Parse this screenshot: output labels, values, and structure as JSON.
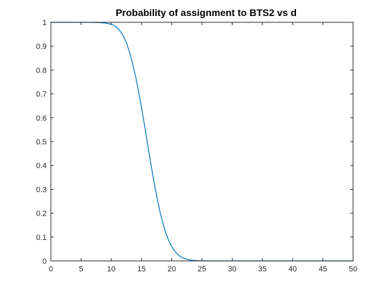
{
  "chart_data": {
    "type": "line",
    "title": "Probability of assignment to BTS2 vs d",
    "xlabel": "",
    "ylabel": "",
    "xlim": [
      0,
      50
    ],
    "ylim": [
      0,
      1
    ],
    "x_ticks": [
      0,
      5,
      10,
      15,
      20,
      25,
      30,
      35,
      40,
      45,
      50
    ],
    "y_ticks": [
      0,
      0.1,
      0.2,
      0.3,
      0.4,
      0.5,
      0.6,
      0.7,
      0.8,
      0.9,
      1
    ],
    "grid": false,
    "box": true,
    "series": [
      {
        "color": "#0072BD",
        "x": [
          0,
          2,
          4,
          6,
          8,
          9,
          10,
          10.5,
          11,
          11.5,
          12,
          12.5,
          13,
          13.5,
          14,
          14.5,
          15,
          15.5,
          16,
          16.5,
          17,
          17.5,
          18,
          18.5,
          19,
          19.5,
          20,
          20.5,
          21,
          21.5,
          22,
          22.5,
          23,
          23.5,
          24,
          24.5,
          25,
          26,
          27,
          28,
          29,
          30,
          35,
          40,
          45,
          50
        ],
        "y": [
          1.0,
          1.0,
          1.0,
          1.0,
          0.999,
          0.997,
          0.992,
          0.986,
          0.977,
          0.962,
          0.942,
          0.914,
          0.877,
          0.83,
          0.775,
          0.712,
          0.642,
          0.568,
          0.49,
          0.414,
          0.34,
          0.272,
          0.212,
          0.161,
          0.119,
          0.085,
          0.06,
          0.041,
          0.027,
          0.017,
          0.011,
          0.007,
          0.004,
          0.0025,
          0.0015,
          0.0008,
          0.0004,
          0.0001,
          0.0,
          0.0,
          0.0,
          0.0,
          0.0,
          0.0,
          0.0,
          0.0
        ]
      }
    ]
  }
}
